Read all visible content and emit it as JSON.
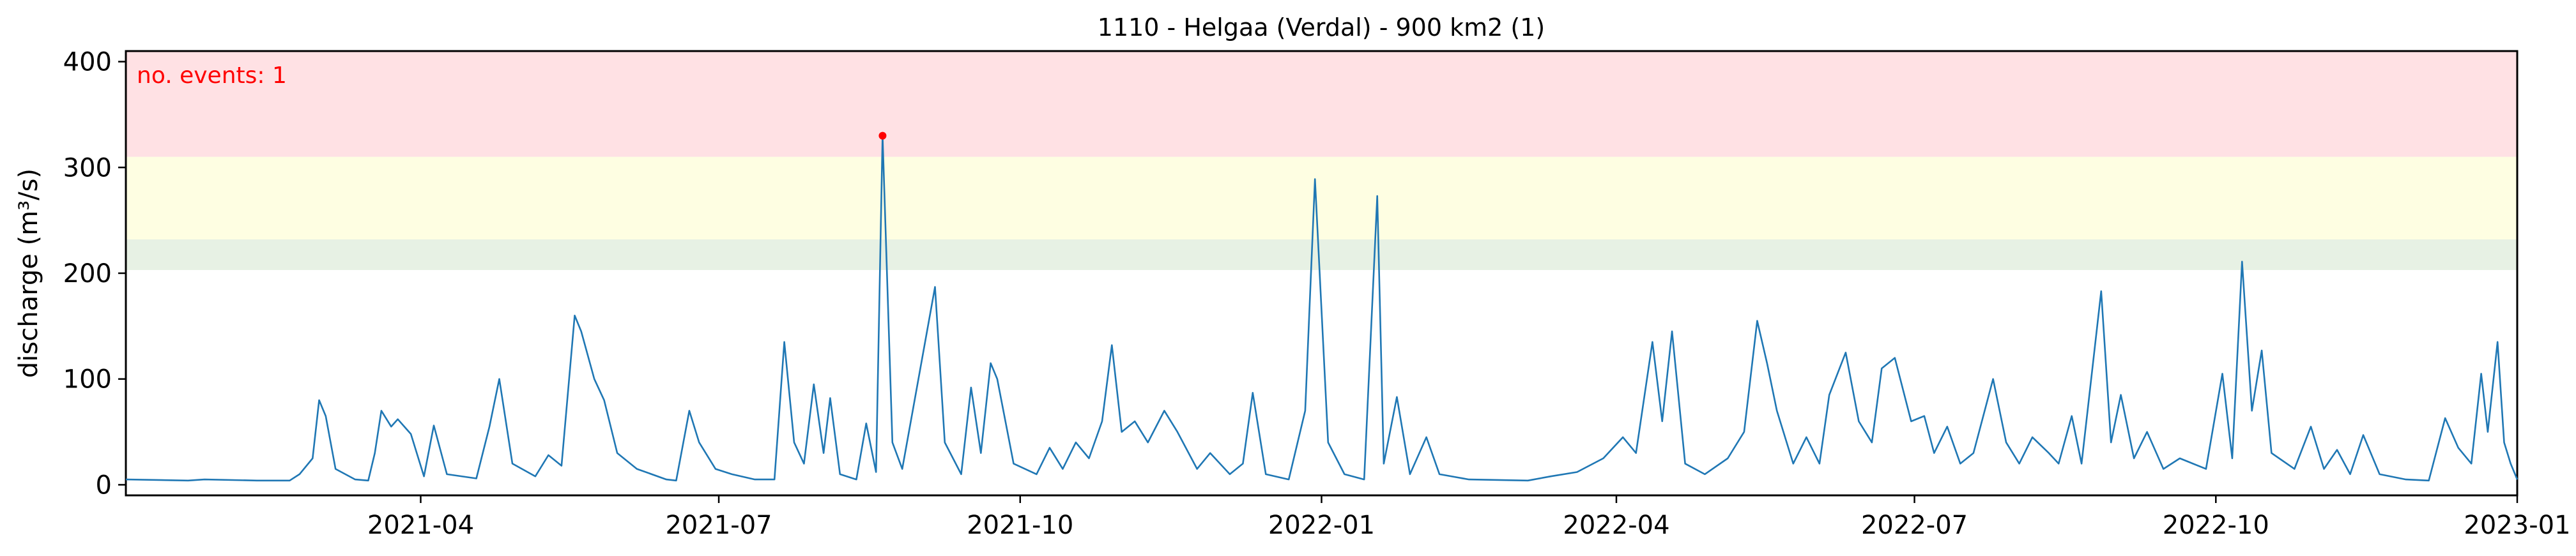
{
  "chart_data": {
    "type": "line",
    "title": "1110 - Helgaa (Verdal) - 900 km2 (1)",
    "xlabel": "",
    "ylabel": "discharge (m³/s)",
    "xlim": [
      "2021-01-01",
      "2023-01-01"
    ],
    "ylim": [
      -10,
      410
    ],
    "x_ticks": [
      "2021-04",
      "2021-07",
      "2021-10",
      "2022-01",
      "2022-04",
      "2022-07",
      "2022-10",
      "2023-01"
    ],
    "y_ticks": [
      0,
      100,
      200,
      300,
      400
    ],
    "grid": false,
    "annotation": "no. events: 1",
    "threshold_bands": [
      {
        "from": 310,
        "to": 410,
        "color": "#ffe1e4"
      },
      {
        "from": 232,
        "to": 310,
        "color": "#fefee2"
      },
      {
        "from": 203,
        "to": 232,
        "color": "#e7f1e4"
      }
    ],
    "event_marker": {
      "x": "2021-08-20",
      "y": 330,
      "color": "#ff0000"
    },
    "series": [
      {
        "color": "#1f77b4",
        "points": [
          [
            "2021-01-01",
            5
          ],
          [
            "2021-01-20",
            4
          ],
          [
            "2021-01-25",
            5
          ],
          [
            "2021-02-10",
            4
          ],
          [
            "2021-02-20",
            4
          ],
          [
            "2021-02-23",
            10
          ],
          [
            "2021-02-27",
            25
          ],
          [
            "2021-03-01",
            80
          ],
          [
            "2021-03-03",
            65
          ],
          [
            "2021-03-06",
            15
          ],
          [
            "2021-03-12",
            5
          ],
          [
            "2021-03-16",
            4
          ],
          [
            "2021-03-18",
            30
          ],
          [
            "2021-03-20",
            70
          ],
          [
            "2021-03-23",
            55
          ],
          [
            "2021-03-25",
            62
          ],
          [
            "2021-03-29",
            48
          ],
          [
            "2021-04-02",
            8
          ],
          [
            "2021-04-05",
            56
          ],
          [
            "2021-04-09",
            10
          ],
          [
            "2021-04-18",
            6
          ],
          [
            "2021-04-22",
            55
          ],
          [
            "2021-04-25",
            100
          ],
          [
            "2021-04-29",
            20
          ],
          [
            "2021-05-06",
            8
          ],
          [
            "2021-05-10",
            28
          ],
          [
            "2021-05-14",
            18
          ],
          [
            "2021-05-18",
            160
          ],
          [
            "2021-05-20",
            145
          ],
          [
            "2021-05-24",
            100
          ],
          [
            "2021-05-27",
            80
          ],
          [
            "2021-05-31",
            30
          ],
          [
            "2021-06-06",
            15
          ],
          [
            "2021-06-15",
            5
          ],
          [
            "2021-06-18",
            4
          ],
          [
            "2021-06-22",
            70
          ],
          [
            "2021-06-25",
            40
          ],
          [
            "2021-06-30",
            15
          ],
          [
            "2021-07-05",
            10
          ],
          [
            "2021-07-12",
            5
          ],
          [
            "2021-07-18",
            5
          ],
          [
            "2021-07-21",
            135
          ],
          [
            "2021-07-24",
            40
          ],
          [
            "2021-07-27",
            20
          ],
          [
            "2021-07-30",
            95
          ],
          [
            "2021-08-02",
            30
          ],
          [
            "2021-08-04",
            82
          ],
          [
            "2021-08-07",
            10
          ],
          [
            "2021-08-12",
            5
          ],
          [
            "2021-08-15",
            58
          ],
          [
            "2021-08-18",
            12
          ],
          [
            "2021-08-20",
            330
          ],
          [
            "2021-08-23",
            40
          ],
          [
            "2021-08-26",
            15
          ],
          [
            "2021-09-05",
            187
          ],
          [
            "2021-09-08",
            40
          ],
          [
            "2021-09-13",
            10
          ],
          [
            "2021-09-16",
            92
          ],
          [
            "2021-09-19",
            30
          ],
          [
            "2021-09-22",
            115
          ],
          [
            "2021-09-24",
            100
          ],
          [
            "2021-09-29",
            20
          ],
          [
            "2021-10-06",
            10
          ],
          [
            "2021-10-10",
            35
          ],
          [
            "2021-10-14",
            15
          ],
          [
            "2021-10-18",
            40
          ],
          [
            "2021-10-22",
            25
          ],
          [
            "2021-10-26",
            60
          ],
          [
            "2021-10-29",
            132
          ],
          [
            "2021-11-01",
            50
          ],
          [
            "2021-11-05",
            60
          ],
          [
            "2021-11-09",
            40
          ],
          [
            "2021-11-14",
            70
          ],
          [
            "2021-11-18",
            50
          ],
          [
            "2021-11-24",
            15
          ],
          [
            "2021-11-28",
            30
          ],
          [
            "2021-12-04",
            10
          ],
          [
            "2021-12-08",
            20
          ],
          [
            "2021-12-11",
            87
          ],
          [
            "2021-12-15",
            10
          ],
          [
            "2021-12-22",
            5
          ],
          [
            "2021-12-27",
            70
          ],
          [
            "2021-12-30",
            289
          ],
          [
            "2022-01-03",
            40
          ],
          [
            "2022-01-08",
            10
          ],
          [
            "2022-01-14",
            5
          ],
          [
            "2022-01-18",
            273
          ],
          [
            "2022-01-20",
            20
          ],
          [
            "2022-01-24",
            83
          ],
          [
            "2022-01-28",
            10
          ],
          [
            "2022-02-02",
            45
          ],
          [
            "2022-02-06",
            10
          ],
          [
            "2022-02-15",
            5
          ],
          [
            "2022-03-05",
            4
          ],
          [
            "2022-03-12",
            8
          ],
          [
            "2022-03-20",
            12
          ],
          [
            "2022-03-28",
            25
          ],
          [
            "2022-04-03",
            45
          ],
          [
            "2022-04-07",
            30
          ],
          [
            "2022-04-12",
            135
          ],
          [
            "2022-04-15",
            60
          ],
          [
            "2022-04-18",
            145
          ],
          [
            "2022-04-22",
            20
          ],
          [
            "2022-04-28",
            10
          ],
          [
            "2022-05-05",
            25
          ],
          [
            "2022-05-10",
            50
          ],
          [
            "2022-05-14",
            155
          ],
          [
            "2022-05-17",
            115
          ],
          [
            "2022-05-20",
            70
          ],
          [
            "2022-05-25",
            20
          ],
          [
            "2022-05-29",
            45
          ],
          [
            "2022-06-02",
            20
          ],
          [
            "2022-06-05",
            85
          ],
          [
            "2022-06-10",
            125
          ],
          [
            "2022-06-14",
            60
          ],
          [
            "2022-06-18",
            40
          ],
          [
            "2022-06-21",
            110
          ],
          [
            "2022-06-25",
            120
          ],
          [
            "2022-06-30",
            60
          ],
          [
            "2022-07-04",
            65
          ],
          [
            "2022-07-07",
            30
          ],
          [
            "2022-07-11",
            55
          ],
          [
            "2022-07-15",
            20
          ],
          [
            "2022-07-19",
            30
          ],
          [
            "2022-07-25",
            100
          ],
          [
            "2022-07-29",
            40
          ],
          [
            "2022-08-02",
            20
          ],
          [
            "2022-08-06",
            45
          ],
          [
            "2022-08-11",
            30
          ],
          [
            "2022-08-14",
            20
          ],
          [
            "2022-08-18",
            65
          ],
          [
            "2022-08-21",
            20
          ],
          [
            "2022-08-27",
            183
          ],
          [
            "2022-08-30",
            40
          ],
          [
            "2022-09-02",
            85
          ],
          [
            "2022-09-06",
            25
          ],
          [
            "2022-09-10",
            50
          ],
          [
            "2022-09-15",
            15
          ],
          [
            "2022-09-20",
            25
          ],
          [
            "2022-09-28",
            15
          ],
          [
            "2022-10-03",
            105
          ],
          [
            "2022-10-06",
            25
          ],
          [
            "2022-10-09",
            211
          ],
          [
            "2022-10-12",
            70
          ],
          [
            "2022-10-15",
            127
          ],
          [
            "2022-10-18",
            30
          ],
          [
            "2022-10-25",
            15
          ],
          [
            "2022-10-30",
            55
          ],
          [
            "2022-11-03",
            15
          ],
          [
            "2022-11-07",
            33
          ],
          [
            "2022-11-11",
            10
          ],
          [
            "2022-11-15",
            47
          ],
          [
            "2022-11-20",
            10
          ],
          [
            "2022-11-28",
            5
          ],
          [
            "2022-12-05",
            4
          ],
          [
            "2022-12-10",
            63
          ],
          [
            "2022-12-14",
            35
          ],
          [
            "2022-12-18",
            20
          ],
          [
            "2022-12-21",
            105
          ],
          [
            "2022-12-23",
            50
          ],
          [
            "2022-12-26",
            135
          ],
          [
            "2022-12-28",
            40
          ],
          [
            "2022-12-30",
            20
          ],
          [
            "2023-01-01",
            5
          ]
        ]
      }
    ]
  }
}
